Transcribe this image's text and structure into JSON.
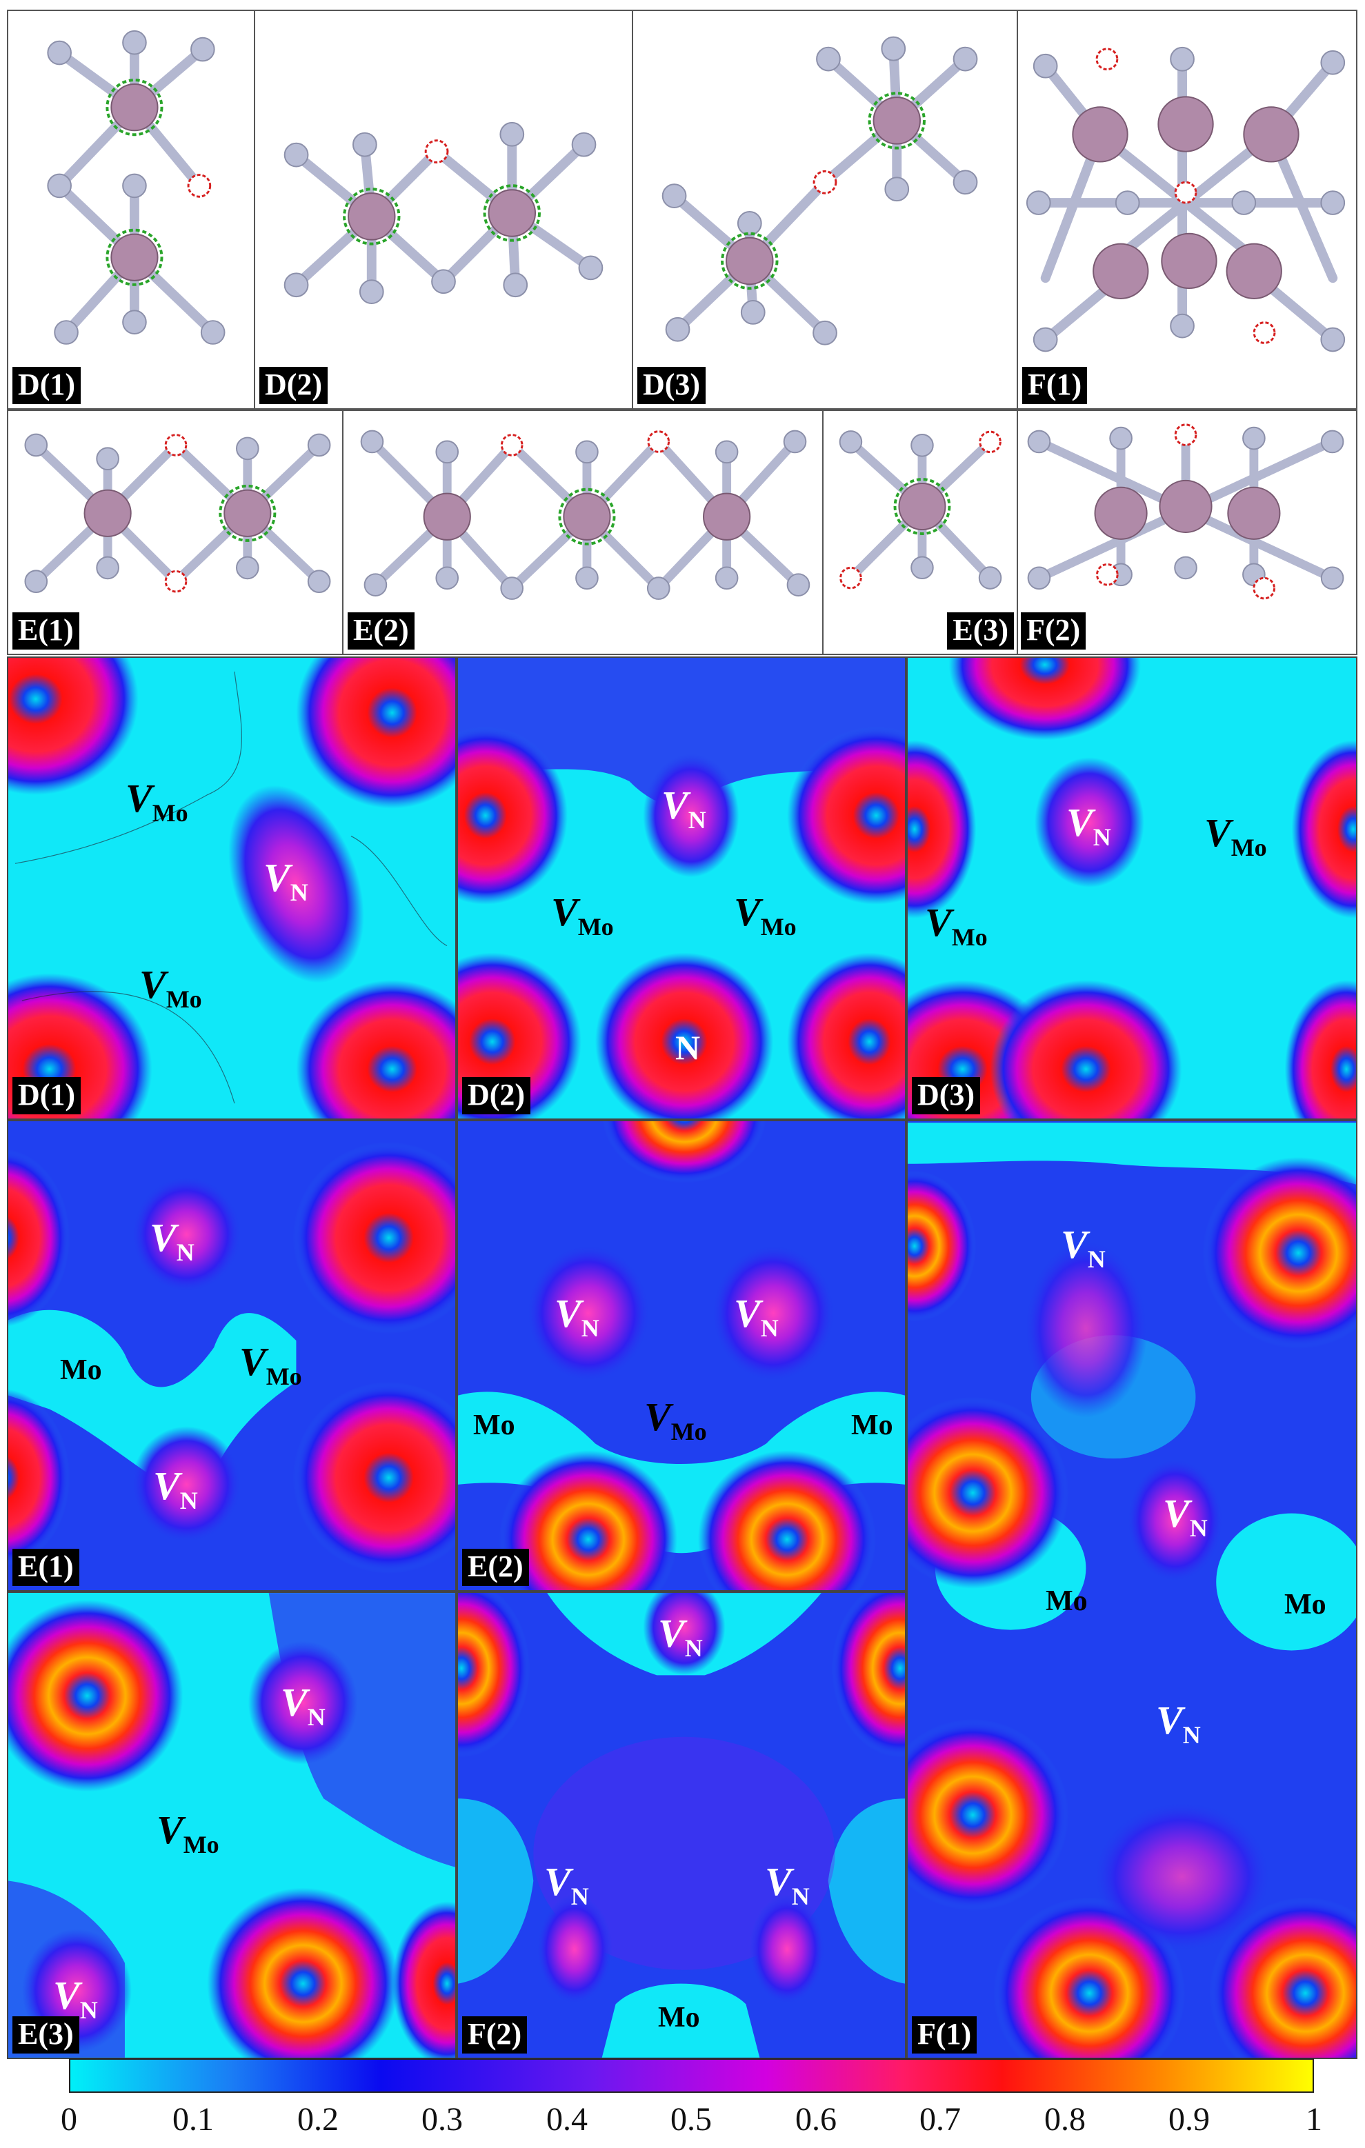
{
  "structure_panels": {
    "D1": "D(1)",
    "D2": "D(2)",
    "D3": "D(3)",
    "F1": "F(1)",
    "E1": "E(1)",
    "E2": "E(2)",
    "E3": "E(3)",
    "F2": "F(2)"
  },
  "map_panels": {
    "D1": "D(1)",
    "D2": "D(2)",
    "D3": "D(3)",
    "E1": "E(1)",
    "E2": "E(2)",
    "E3": "E(3)",
    "F1": "F(1)",
    "F2": "F(2)"
  },
  "labels": {
    "V": "V",
    "Mo": "Mo",
    "N": "N"
  },
  "colorbar": {
    "ticks": [
      "0",
      "0.1",
      "0.2",
      "0.3",
      "0.4",
      "0.5",
      "0.6",
      "0.7",
      "0.8",
      "0.9",
      "1"
    ],
    "range": [
      0,
      1
    ],
    "colors": [
      "#00f0f8",
      "#0a0af0",
      "#d200e0",
      "#ff1010",
      "#ffff00"
    ]
  },
  "atom_colors": {
    "Mo": "#b08aa8",
    "N": "#b9bed6",
    "vacancy_Mo": "#2aa52a",
    "vacancy_N": "#d62020"
  }
}
